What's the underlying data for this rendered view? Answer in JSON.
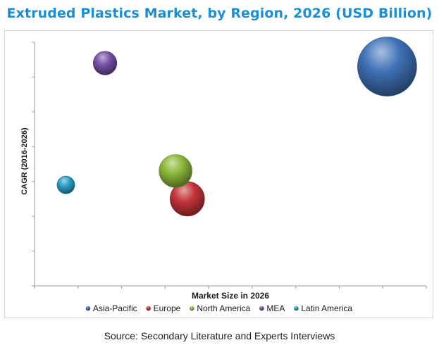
{
  "chart_data": {
    "type": "bubble",
    "title": "Extruded Plastics Market, by Region, 2026 (USD Billion)",
    "xlabel": "Market Size in 2026",
    "ylabel": "CAGR (2016-2026)",
    "x_tick_labels_shown": false,
    "y_tick_labels_shown": false,
    "grid": false,
    "legend_position": "bottom",
    "series": [
      {
        "name": "Asia-Pacific",
        "x": 90,
        "y": 6.3,
        "size": 100,
        "color": "#3f72b8"
      },
      {
        "name": "Europe",
        "x": 39,
        "y": 2.5,
        "size": 34,
        "color": "#c4343a"
      },
      {
        "name": "North America",
        "x": 36,
        "y": 3.3,
        "size": 31,
        "color": "#8cb83a"
      },
      {
        "name": "MEA",
        "x": 18,
        "y": 6.4,
        "size": 16,
        "color": "#7650a6"
      },
      {
        "name": "Latin America",
        "x": 8,
        "y": 2.9,
        "size": 9,
        "color": "#2c9ec6"
      }
    ]
  },
  "source": "Source: Secondary Literature and Experts Interviews"
}
